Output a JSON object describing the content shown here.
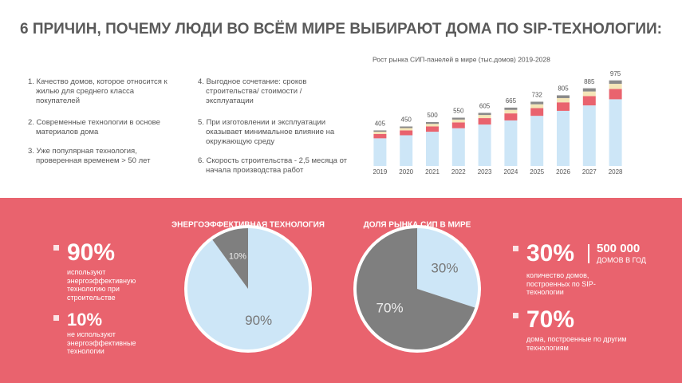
{
  "title": "6 ПРИЧИН, ПОЧЕМУ ЛЮДИ ВО ВСЁМ МИРЕ ВЫБИРАЮТ ДОМА ПО SIP-ТЕХНОЛОГИИ:",
  "reasons": [
    "1. Качество домов, которое относится к жилью для среднего класса покупателей",
    "2. Современные технологии в основе материалов дома",
    "3. Уже популярная технология, проверенная временем > 50 лет",
    "4. Выгодное сочетание: сроков строительства/ стоимости /эксплуатации",
    "5. При изготовлении и эксплуатации оказывает минимальное влияние на окружающую среду",
    "6. Скорость строительства - 2,5 месяца от начала производства работ"
  ],
  "chart_data": [
    {
      "type": "bar",
      "title": "Рост рынка СИП-панелей в мире (тыс.домов) 2019-2028",
      "categories": [
        "2019",
        "2020",
        "2021",
        "2022",
        "2023",
        "2024",
        "2025",
        "2026",
        "2027",
        "2028"
      ],
      "totals": [
        405,
        450,
        500,
        550,
        605,
        665,
        732,
        805,
        885,
        975
      ],
      "series": [
        {
          "color": "#cde6f7",
          "values": [
            315,
            350,
            390,
            430,
            472,
            519,
            571,
            628,
            690,
            760
          ]
        },
        {
          "color": "#e9636e",
          "values": [
            50,
            55,
            60,
            66,
            73,
            80,
            88,
            97,
            106,
            117
          ]
        },
        {
          "color": "#f5e6b8",
          "values": [
            25,
            27,
            30,
            33,
            36,
            40,
            44,
            48,
            53,
            59
          ]
        },
        {
          "color": "#8a8a8a",
          "values": [
            15,
            18,
            20,
            21,
            24,
            26,
            29,
            32,
            36,
            39
          ]
        }
      ],
      "ylim": [
        0,
        1000
      ]
    },
    {
      "type": "pie",
      "title": "ЭНЕРГОЭФФЕКТИВНАЯ  ТЕХНОЛОГИЯ",
      "values": [
        90,
        10
      ],
      "value_labels": [
        "90%",
        "10%"
      ],
      "colors": [
        "#cde6f7",
        "#7f7f7f"
      ]
    },
    {
      "type": "pie",
      "title": "ДОЛЯ РЫНКА СИП В МИРЕ",
      "values": [
        30,
        70
      ],
      "value_labels": [
        "30%",
        "70%"
      ],
      "colors": [
        "#cde6f7",
        "#7f7f7f"
      ]
    }
  ],
  "left_stats": [
    {
      "value": "90%",
      "text": "используют энергоэффективную технологию при строительстве"
    },
    {
      "value": "10%",
      "text": "не используют энергоэффективные технологии"
    }
  ],
  "right_stats": {
    "share": "30%",
    "count": "500 000",
    "count_unit": "ДОМОВ В ГОД",
    "text": "количество домов, построенных по SIP-технологии",
    "other_share": "70%",
    "other_text": "дома, построенные по другим технологиям"
  }
}
